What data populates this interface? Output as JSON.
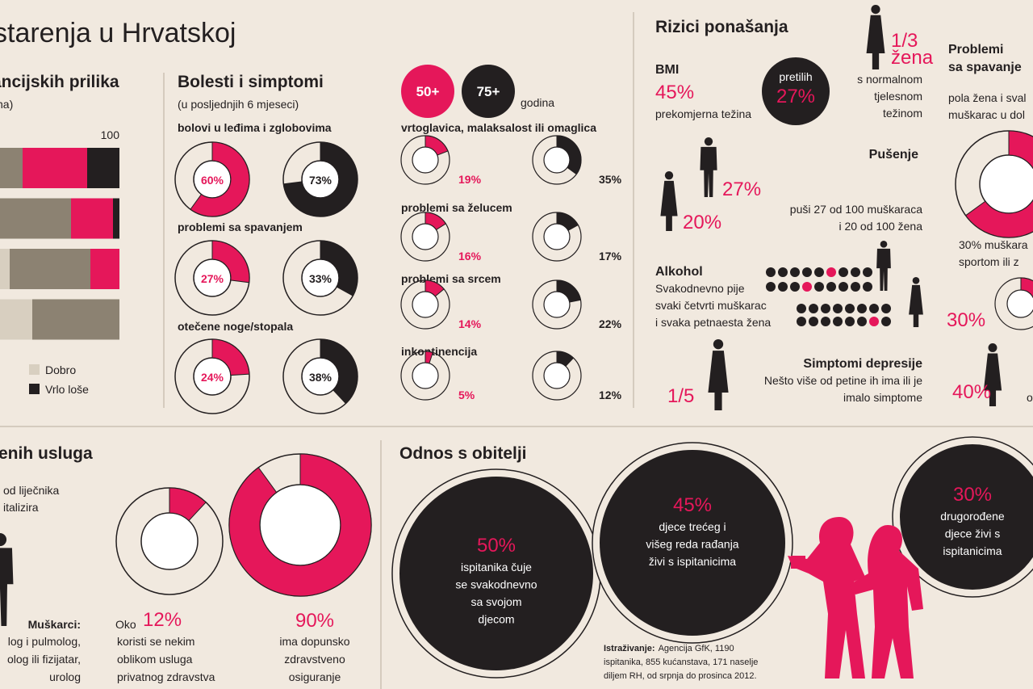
{
  "header": {
    "title": "starenja u Hrvatskoj"
  },
  "finance": {
    "title": "ancijskih prilika",
    "subtitle": "na)",
    "xticks": [
      100
    ],
    "colors": [
      "#d8cfc0",
      "#8c8272",
      "#e5175a",
      "#231f20"
    ],
    "bars": [
      [
        55,
        15,
        20,
        10
      ],
      [
        50,
        35,
        13,
        2
      ],
      [
        66,
        25,
        9,
        0
      ],
      [
        73,
        27,
        0,
        0
      ]
    ],
    "legend": [
      {
        "label": "Dobro",
        "color": "#d8cfc0"
      },
      {
        "label": "Vrlo loše",
        "color": "#231f20"
      }
    ]
  },
  "illness": {
    "title": "Bolesti i simptomi",
    "subtitle": "(u posljednjih 6 mjeseci)",
    "groups": [
      {
        "label": "50+",
        "color": "#e5175a"
      },
      {
        "label": "75+",
        "color": "#231f20"
      }
    ],
    "groups_unit": "godina",
    "large": [
      {
        "label": "bolovi u leđima i zglobovima",
        "values": [
          {
            "value": 60,
            "label": "60%"
          },
          {
            "value": 73,
            "label": "73%"
          }
        ]
      },
      {
        "label": "problemi sa spavanjem",
        "values": [
          {
            "value": 27,
            "label": "27%"
          },
          {
            "value": 33,
            "label": "33%"
          }
        ]
      },
      {
        "label": "otečene noge/stopala",
        "values": [
          {
            "value": 24,
            "label": "24%"
          },
          {
            "value": 38,
            "label": "38%"
          }
        ]
      }
    ],
    "small": [
      {
        "label": "vrtoglavica, malaksalost ili omaglica",
        "values": [
          {
            "value": 19,
            "label": "19%"
          },
          {
            "value": 35,
            "label": "35%"
          }
        ]
      },
      {
        "label": "problemi sa želucem",
        "values": [
          {
            "value": 16,
            "label": "16%"
          },
          {
            "value": 17,
            "label": "17%"
          }
        ]
      },
      {
        "label": "problemi sa srcem",
        "values": [
          {
            "value": 14,
            "label": "14%"
          },
          {
            "value": 22,
            "label": "22%"
          }
        ]
      },
      {
        "label": "inkontinencija",
        "values": [
          {
            "value": 5,
            "label": "5%"
          },
          {
            "value": 12,
            "label": "12%"
          }
        ]
      }
    ]
  },
  "risks": {
    "title": "Rizici ponašanja",
    "bmi": {
      "title": "BMI",
      "overweight": "45%",
      "overweight_label": "prekomjerna težina",
      "obese_label": "pretilih",
      "obese": "27%",
      "normal": "1/3",
      "normal_group": "žena",
      "normal_label": [
        "s normalnom",
        "tjelesnom",
        "težinom"
      ]
    },
    "smoking": {
      "title": "Pušenje",
      "men": "27%",
      "women": "20%",
      "text": [
        "puši 27 od 100 muškaraca",
        "i 20 od 100 žena"
      ]
    },
    "alcohol": {
      "title": "Alkohol",
      "text": [
        "Svakodnevno pije",
        "svaki četvrti muškarac",
        "i svaka petnaesta žena"
      ]
    },
    "depression": {
      "title": "Simptomi depresije",
      "text": [
        "Nešto više od petine ih ima ili je",
        "imalo simptome"
      ],
      "share": "1/5"
    }
  },
  "sleep": {
    "title": [
      "Problemi",
      "sa spavanje"
    ],
    "text": [
      "pola žena i sval",
      "muškarac u dol"
    ],
    "share": 65,
    "sport_text": [
      "30% muškara",
      "sportom ili z"
    ],
    "sport": {
      "value": 30,
      "label": "30%"
    },
    "other": "40%",
    "other_text": "o"
  },
  "services": {
    "title": "enih usluga",
    "text": [
      "od liječnika",
      "italizira"
    ],
    "men_title": "Muškarci:",
    "men_text": [
      "log i pulmolog,",
      "olog ili fizijatar,",
      "urolog"
    ],
    "private": {
      "value": 12,
      "prefix": "Oko",
      "label": "12%",
      "text": [
        "koristi se nekim",
        "oblikom usluga",
        "privatnog zdravstva"
      ]
    },
    "insurance": {
      "value": 90,
      "label": "90%",
      "text": [
        "ima dopunsko",
        "zdravstveno",
        "osiguranje"
      ]
    }
  },
  "family": {
    "title": "Odnos s obitelji",
    "circles": [
      {
        "value": "50%",
        "text": [
          "ispitanika čuje",
          "se svakodnevno",
          "sa svojom",
          "djecom"
        ]
      },
      {
        "value": "45%",
        "text": [
          "djece trećeg i",
          "višeg reda rađanja",
          "živi s ispitanicima"
        ]
      },
      {
        "value": "30%",
        "text": [
          "drugorođene",
          "djece živi s",
          "ispitanicima"
        ]
      }
    ],
    "source": {
      "label": "Istraživanje:",
      "text": [
        "Agencija GfK, 1190",
        "ispitanika, 855 kućanstava, 171 naselje",
        "diljem RH, od srpnja do prosinca 2012."
      ]
    }
  }
}
